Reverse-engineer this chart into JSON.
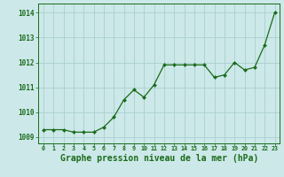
{
  "x": [
    0,
    1,
    2,
    3,
    4,
    5,
    6,
    7,
    8,
    9,
    10,
    11,
    12,
    13,
    14,
    15,
    16,
    17,
    18,
    19,
    20,
    21,
    22,
    23
  ],
  "y": [
    1009.3,
    1009.3,
    1009.3,
    1009.2,
    1009.2,
    1009.2,
    1009.4,
    1009.8,
    1010.5,
    1010.9,
    1010.6,
    1011.1,
    1011.9,
    1011.9,
    1011.9,
    1011.9,
    1011.9,
    1011.4,
    1011.5,
    1012.0,
    1011.7,
    1011.8,
    1012.7,
    1014.0
  ],
  "line_color": "#1a6b1a",
  "marker_color": "#1a6b1a",
  "bg_color": "#cce8e8",
  "grid_color": "#aacfcf",
  "xlabel": "Graphe pression niveau de la mer (hPa)",
  "xlabel_fontsize": 7.0,
  "ytick_labels": [
    "1009",
    "1010",
    "1011",
    "1012",
    "1013",
    "1014"
  ],
  "ytick_vals": [
    1009,
    1010,
    1011,
    1012,
    1013,
    1014
  ],
  "xtick_vals": [
    0,
    1,
    2,
    3,
    4,
    5,
    6,
    7,
    8,
    9,
    10,
    11,
    12,
    13,
    14,
    15,
    16,
    17,
    18,
    19,
    20,
    21,
    22,
    23
  ],
  "ylim": [
    1008.75,
    1014.35
  ],
  "xlim": [
    -0.5,
    23.5
  ]
}
